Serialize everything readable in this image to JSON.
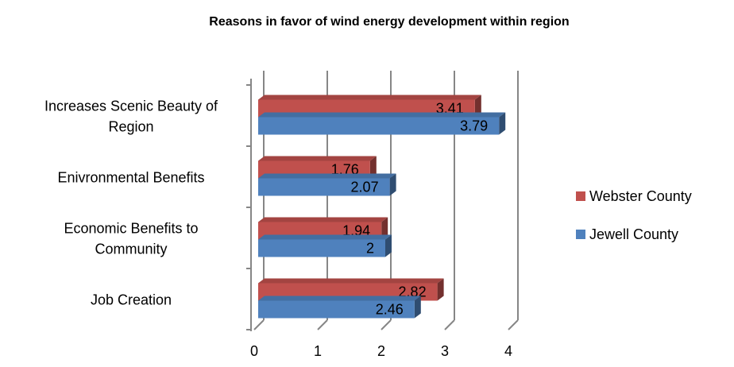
{
  "chart_data": {
    "type": "bar",
    "orientation": "horizontal",
    "title": "Reasons in favor of wind energy development within region",
    "categories": [
      "Increases Scenic Beauty of Region",
      "Enivronmental Benefits",
      "Economic Benefits to Community",
      "Job Creation"
    ],
    "series": [
      {
        "name": "Webster County",
        "color": "#c0504d",
        "values": [
          3.41,
          1.76,
          1.94,
          2.82
        ]
      },
      {
        "name": "Jewell County",
        "color": "#4f81bd",
        "values": [
          3.79,
          2.07,
          2,
          2.46
        ]
      }
    ],
    "xlim": [
      0,
      4
    ],
    "xticks": [
      0,
      1,
      2,
      3,
      4
    ],
    "grid": true,
    "legend": "right"
  }
}
